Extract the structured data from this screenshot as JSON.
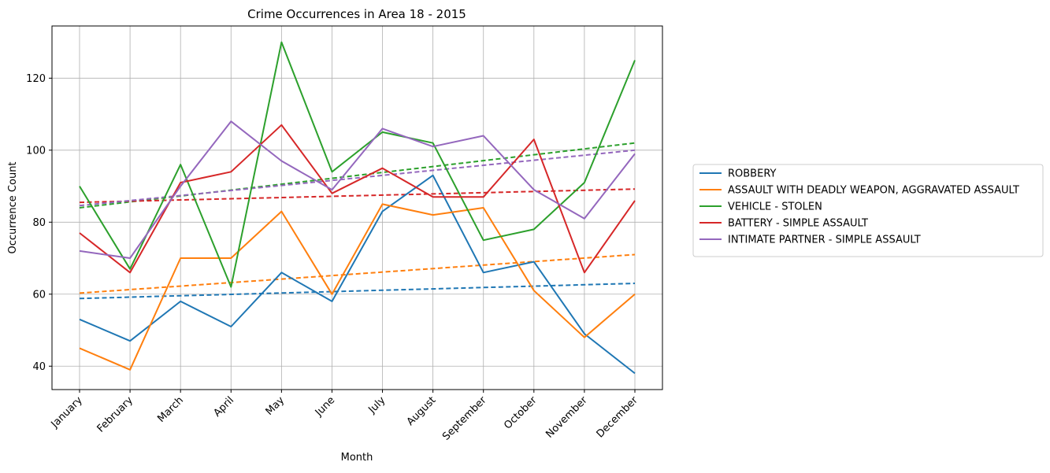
{
  "chart_data": {
    "type": "line",
    "title": "Crime Occurrences in Area 18 - 2015",
    "xlabel": "Month",
    "ylabel": "Occurrence Count",
    "categories": [
      "January",
      "February",
      "March",
      "April",
      "May",
      "June",
      "July",
      "August",
      "September",
      "October",
      "November",
      "December"
    ],
    "ylim": [
      33.5,
      134.5
    ],
    "yticks": [
      40,
      60,
      80,
      100,
      120
    ],
    "grid": true,
    "legend_position": "right",
    "series": [
      {
        "name": "ROBBERY",
        "color": "#1f77b4",
        "values": [
          53,
          47,
          58,
          51,
          66,
          58,
          83,
          93,
          66,
          69,
          49,
          38
        ],
        "trend": [
          58.8,
          63.0
        ]
      },
      {
        "name": "ASSAULT WITH DEADLY WEAPON, AGGRAVATED ASSAULT",
        "color": "#ff7f0e",
        "values": [
          45,
          39,
          70,
          70,
          83,
          60,
          85,
          82,
          84,
          61,
          48,
          60
        ],
        "trend": [
          60.3,
          71.0
        ]
      },
      {
        "name": "VEHICLE - STOLEN",
        "color": "#2ca02c",
        "values": [
          90,
          67,
          96,
          62,
          130,
          94,
          105,
          102,
          75,
          78,
          91,
          125
        ],
        "trend": [
          84.0,
          102.0
        ]
      },
      {
        "name": "BATTERY - SIMPLE ASSAULT",
        "color": "#d62728",
        "values": [
          77,
          66,
          91,
          94,
          107,
          88,
          95,
          87,
          87,
          103,
          66,
          86
        ],
        "trend": [
          85.5,
          89.2
        ]
      },
      {
        "name": "INTIMATE PARTNER - SIMPLE ASSAULT",
        "color": "#9467bd",
        "values": [
          72,
          70,
          90,
          108,
          97,
          89,
          106,
          101,
          104,
          89,
          81,
          99
        ],
        "trend": [
          84.6,
          100.0
        ]
      }
    ]
  }
}
